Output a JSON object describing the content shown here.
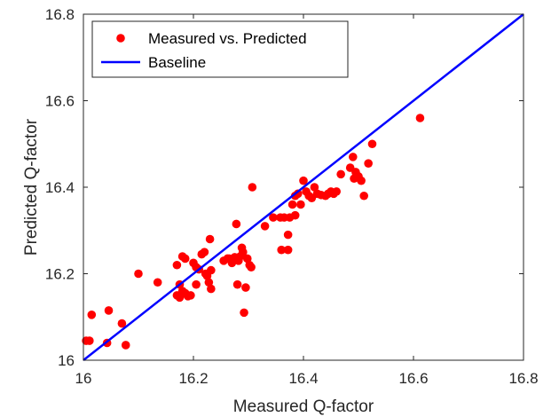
{
  "chart_data": {
    "type": "scatter",
    "xlabel": "Measured Q-factor",
    "ylabel": "Predicted Q-factor",
    "xlim": [
      16,
      16.8
    ],
    "ylim": [
      16,
      16.8
    ],
    "xticks": [
      "16",
      "16.2",
      "16.4",
      "16.6",
      "16.8"
    ],
    "yticks": [
      "16",
      "16.2",
      "16.4",
      "16.6",
      "16.8"
    ],
    "grid": false,
    "legend_position": "top-left",
    "series": [
      {
        "name": "Measured vs. Predicted",
        "kind": "scatter",
        "color": "#ff0000",
        "points": [
          [
            16.005,
            16.045
          ],
          [
            16.011,
            16.045
          ],
          [
            16.015,
            16.105
          ],
          [
            16.043,
            16.04
          ],
          [
            16.046,
            16.115
          ],
          [
            16.07,
            16.085
          ],
          [
            16.077,
            16.035
          ],
          [
            16.1,
            16.2
          ],
          [
            16.135,
            16.18
          ],
          [
            16.17,
            16.22
          ],
          [
            16.17,
            16.15
          ],
          [
            16.175,
            16.175
          ],
          [
            16.175,
            16.145
          ],
          [
            16.18,
            16.24
          ],
          [
            16.185,
            16.235
          ],
          [
            16.18,
            16.16
          ],
          [
            16.185,
            16.155
          ],
          [
            16.19,
            16.148
          ],
          [
            16.195,
            16.15
          ],
          [
            16.2,
            16.225
          ],
          [
            16.205,
            16.175
          ],
          [
            16.205,
            16.215
          ],
          [
            16.21,
            16.21
          ],
          [
            16.215,
            16.245
          ],
          [
            16.22,
            16.25
          ],
          [
            16.222,
            16.2
          ],
          [
            16.225,
            16.195
          ],
          [
            16.228,
            16.18
          ],
          [
            16.23,
            16.28
          ],
          [
            16.232,
            16.208
          ],
          [
            16.232,
            16.165
          ],
          [
            16.255,
            16.23
          ],
          [
            16.262,
            16.235
          ],
          [
            16.265,
            16.235
          ],
          [
            16.27,
            16.225
          ],
          [
            16.275,
            16.238
          ],
          [
            16.278,
            16.315
          ],
          [
            16.28,
            16.175
          ],
          [
            16.282,
            16.23
          ],
          [
            16.285,
            16.24
          ],
          [
            16.288,
            16.26
          ],
          [
            16.29,
            16.25
          ],
          [
            16.292,
            16.11
          ],
          [
            16.295,
            16.168
          ],
          [
            16.298,
            16.235
          ],
          [
            16.302,
            16.22
          ],
          [
            16.305,
            16.215
          ],
          [
            16.307,
            16.4
          ],
          [
            16.33,
            16.31
          ],
          [
            16.345,
            16.33
          ],
          [
            16.358,
            16.33
          ],
          [
            16.36,
            16.255
          ],
          [
            16.365,
            16.33
          ],
          [
            16.372,
            16.29
          ],
          [
            16.372,
            16.255
          ],
          [
            16.375,
            16.33
          ],
          [
            16.38,
            16.36
          ],
          [
            16.385,
            16.335
          ],
          [
            16.385,
            16.38
          ],
          [
            16.39,
            16.385
          ],
          [
            16.395,
            16.36
          ],
          [
            16.4,
            16.415
          ],
          [
            16.405,
            16.39
          ],
          [
            16.41,
            16.38
          ],
          [
            16.415,
            16.375
          ],
          [
            16.42,
            16.4
          ],
          [
            16.425,
            16.385
          ],
          [
            16.432,
            16.382
          ],
          [
            16.44,
            16.38
          ],
          [
            16.445,
            16.385
          ],
          [
            16.45,
            16.39
          ],
          [
            16.455,
            16.385
          ],
          [
            16.46,
            16.39
          ],
          [
            16.468,
            16.43
          ],
          [
            16.485,
            16.445
          ],
          [
            16.49,
            16.47
          ],
          [
            16.492,
            16.42
          ],
          [
            16.495,
            16.435
          ],
          [
            16.5,
            16.425
          ],
          [
            16.505,
            16.415
          ],
          [
            16.51,
            16.38
          ],
          [
            16.518,
            16.455
          ],
          [
            16.525,
            16.5
          ],
          [
            16.612,
            16.56
          ]
        ]
      },
      {
        "name": "Baseline",
        "kind": "line",
        "color": "#0000ff",
        "points": [
          [
            16,
            16
          ],
          [
            16.8,
            16.8
          ]
        ]
      }
    ]
  }
}
